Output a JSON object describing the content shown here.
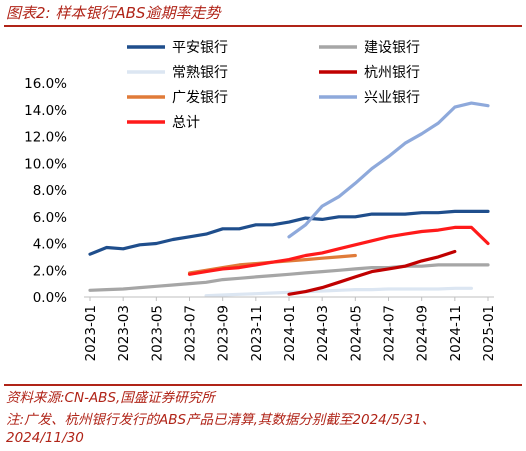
{
  "header": {
    "title": "图表2:  样本银行ABS逾期率走势"
  },
  "footer": {
    "source": "资料来源:CN-ABS,国盛证券研究所",
    "note_line1": "注:广发、杭州银行发行的ABS产品已清算,其数据分别截至2024/5/31、",
    "note_line2": "2024/11/30"
  },
  "colors": {
    "brand": "#b02418",
    "axis": "#bfbfbf"
  },
  "chart_data": {
    "type": "line",
    "title": "",
    "xlabel": "",
    "ylabel": "",
    "ylim": [
      0,
      16
    ],
    "grid": false,
    "legend_position": "top",
    "y_ticks": [
      "0.0%",
      "2.0%",
      "4.0%",
      "6.0%",
      "8.0%",
      "10.0%",
      "12.0%",
      "14.0%",
      "16.0%"
    ],
    "x": [
      "2023-01",
      "2023-02",
      "2023-03",
      "2023-04",
      "2023-05",
      "2023-06",
      "2023-07",
      "2023-08",
      "2023-09",
      "2023-10",
      "2023-11",
      "2023-12",
      "2024-01",
      "2024-02",
      "2024-03",
      "2024-04",
      "2024-05",
      "2024-06",
      "2024-07",
      "2024-08",
      "2024-09",
      "2024-10",
      "2024-11",
      "2024-12",
      "2025-01"
    ],
    "x_tick_labels": [
      "2023-01",
      "2023-03",
      "2023-05",
      "2023-07",
      "2023-09",
      "2023-11",
      "2024-01",
      "2024-03",
      "2024-05",
      "2024-07",
      "2024-09",
      "2024-11",
      "2025-01"
    ],
    "series": [
      {
        "name": "平安银行",
        "color": "#1f4e8c",
        "width": 3.2,
        "values": [
          3.2,
          3.7,
          3.6,
          3.9,
          4.0,
          4.3,
          4.5,
          4.7,
          5.1,
          5.1,
          5.4,
          5.4,
          5.6,
          5.9,
          5.8,
          6.0,
          6.0,
          6.2,
          6.2,
          6.2,
          6.3,
          6.3,
          6.4,
          6.4,
          6.4
        ]
      },
      {
        "name": "建设银行",
        "color": "#a6a6a6",
        "width": 3.2,
        "values": [
          0.5,
          0.55,
          0.6,
          0.7,
          0.8,
          0.9,
          1.0,
          1.1,
          1.3,
          1.4,
          1.5,
          1.6,
          1.7,
          1.8,
          1.9,
          2.0,
          2.1,
          2.2,
          2.2,
          2.3,
          2.3,
          2.4,
          2.4,
          2.4,
          2.4
        ]
      },
      {
        "name": "常熟银行",
        "color": "#dce6f2",
        "width": 3.2,
        "values": [
          null,
          null,
          null,
          null,
          null,
          null,
          null,
          0.1,
          0.15,
          0.2,
          0.25,
          0.3,
          0.35,
          0.4,
          0.45,
          0.5,
          0.55,
          0.55,
          0.6,
          0.6,
          0.6,
          0.6,
          0.65,
          0.65,
          null
        ]
      },
      {
        "name": "杭州银行",
        "color": "#c00000",
        "width": 3.2,
        "values": [
          null,
          null,
          null,
          null,
          null,
          null,
          null,
          null,
          null,
          null,
          null,
          null,
          0.2,
          0.4,
          0.7,
          1.1,
          1.5,
          1.9,
          2.1,
          2.3,
          2.7,
          3.0,
          3.4,
          null,
          null
        ]
      },
      {
        "name": "广发银行",
        "color": "#e07b39",
        "width": 3.2,
        "values": [
          null,
          null,
          null,
          null,
          null,
          null,
          1.8,
          2.0,
          2.2,
          2.4,
          2.5,
          2.6,
          2.7,
          2.8,
          2.9,
          3.0,
          3.1,
          null,
          null,
          null,
          null,
          null,
          null,
          null,
          null
        ]
      },
      {
        "name": "兴业银行",
        "color": "#8ea9db",
        "width": 3.2,
        "values": [
          null,
          null,
          null,
          null,
          null,
          null,
          null,
          null,
          null,
          null,
          null,
          null,
          4.5,
          5.4,
          6.8,
          7.5,
          8.5,
          9.6,
          10.5,
          11.5,
          12.2,
          13.0,
          14.2,
          14.5,
          14.3
        ]
      },
      {
        "name": "总计",
        "color": "#ff1a1a",
        "width": 3.2,
        "values": [
          null,
          null,
          null,
          null,
          null,
          null,
          1.7,
          1.9,
          2.1,
          2.2,
          2.4,
          2.6,
          2.8,
          3.1,
          3.3,
          3.6,
          3.9,
          4.2,
          4.5,
          4.7,
          4.9,
          5.0,
          5.2,
          5.2,
          4.0
        ]
      }
    ]
  }
}
